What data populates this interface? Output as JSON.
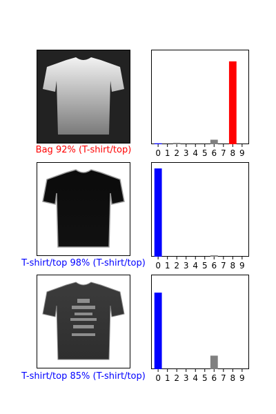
{
  "figure": {
    "rows": [
      {
        "caption": "Bag 92% (T-shirt/top)",
        "caption_color": "#ff0000",
        "image": {
          "subject": "light-gray-tshirt",
          "background": "#222222",
          "fill_top": "#f2f2f2",
          "fill_bottom": "#7a7a7a"
        }
      },
      {
        "caption": "T-shirt/top 98% (T-shirt/top)",
        "caption_color": "#0000ff",
        "image": {
          "subject": "black-tshirt",
          "background": "#ffffff",
          "fill_top": "#0b0b0b",
          "fill_bottom": "#111111"
        }
      },
      {
        "caption": "T-shirt/top 85% (T-shirt/top)",
        "caption_color": "#0000ff",
        "image": {
          "subject": "dark-gray-printed-tshirt",
          "background": "#ffffff",
          "fill_top": "#3c3c3c",
          "fill_bottom": "#2e2e2e"
        }
      }
    ]
  },
  "chart_data": [
    {
      "type": "bar",
      "categories": [
        "0",
        "1",
        "2",
        "3",
        "4",
        "5",
        "6",
        "7",
        "8",
        "9"
      ],
      "values": [
        0.01,
        0.0,
        0.015,
        0.0,
        0.0,
        0.0,
        0.05,
        0.0,
        0.92,
        0.0
      ],
      "ylim": [
        0,
        1
      ],
      "grid": false,
      "colors": {
        "default": "#808080",
        "predicted": "#ff0000",
        "true_label": "#0000ff"
      },
      "predicted_index": 8,
      "true_index": 0
    },
    {
      "type": "bar",
      "categories": [
        "0",
        "1",
        "2",
        "3",
        "4",
        "5",
        "6",
        "7",
        "8",
        "9"
      ],
      "values": [
        0.98,
        0.0,
        0.0,
        0.0,
        0.0,
        0.0,
        0.015,
        0.0,
        0.0,
        0.0
      ],
      "ylim": [
        0,
        1
      ],
      "grid": false,
      "colors": {
        "default": "#808080",
        "predicted": "#ff0000",
        "true_label": "#0000ff"
      },
      "predicted_index": 0,
      "true_index": 0
    },
    {
      "type": "bar",
      "categories": [
        "0",
        "1",
        "2",
        "3",
        "4",
        "5",
        "6",
        "7",
        "8",
        "9"
      ],
      "values": [
        0.85,
        0.0,
        0.0,
        0.0,
        0.0,
        0.0,
        0.15,
        0.0,
        0.0,
        0.0
      ],
      "ylim": [
        0,
        1
      ],
      "grid": false,
      "colors": {
        "default": "#808080",
        "predicted": "#ff0000",
        "true_label": "#0000ff"
      },
      "predicted_index": 0,
      "true_index": 0
    }
  ]
}
